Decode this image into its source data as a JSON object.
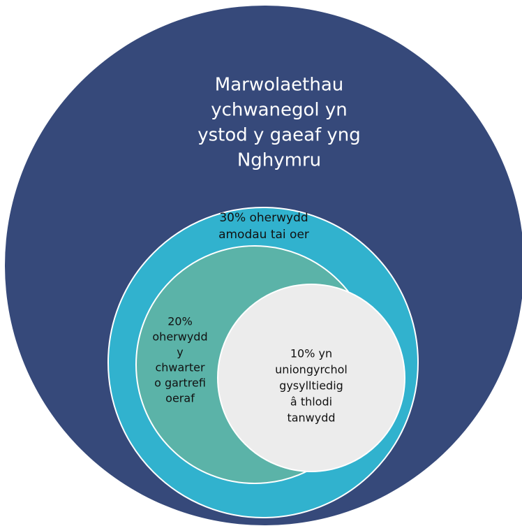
{
  "nodes": [
    {
      "label": [
        "Marwolaethau",
        "ychwanegol yn",
        "ystod y gaeaf yng",
        "Nghymru"
      ]
    },
    {
      "label": [
        "30% oherwydd",
        "amodau tai oer"
      ]
    },
    {
      "label": [
        "20%",
        "oherwydd",
        "y",
        "chwarter",
        "o gartrefi",
        "oeraf"
      ]
    },
    {
      "label": [
        "10% yn",
        "uniongyrchol",
        "gysylltiedig",
        "â thlodi",
        "tanwydd"
      ]
    }
  ]
}
